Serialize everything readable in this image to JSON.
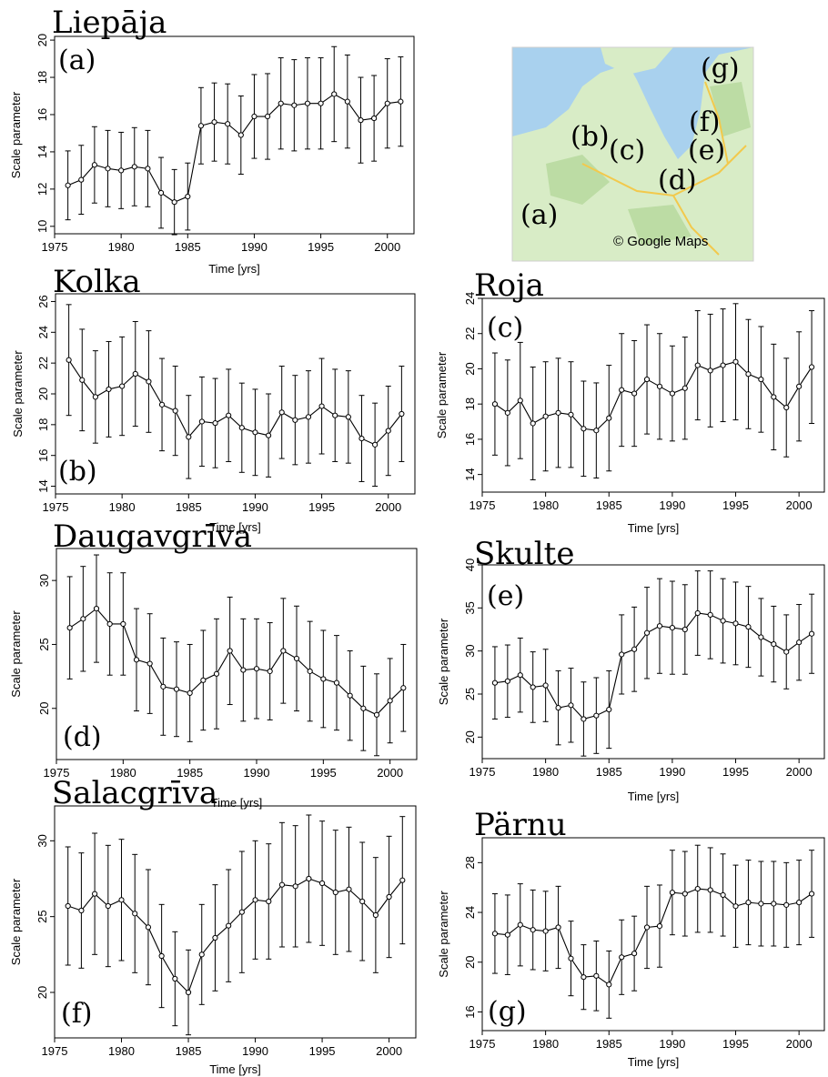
{
  "map": {
    "labels": [
      "(a)",
      "(b)",
      "(c)",
      "(d)",
      "(e)",
      "(f)",
      "(g)"
    ],
    "credit": "© Google Maps",
    "colors": {
      "sea": "#a9d1ee",
      "land": "#d8ecc6",
      "land_dark": "#bcdca4",
      "road": "#f2c94c"
    }
  },
  "chart_data": [
    {
      "type": "line",
      "title": "Liepāja",
      "panel_label": "(a)",
      "xlabel": "Time [yrs]",
      "ylabel": "Scale parameter",
      "xlim": [
        1975,
        2002
      ],
      "ylim": [
        9.6,
        20.2
      ],
      "xticks": [
        1975,
        1980,
        1985,
        1990,
        1995,
        2000
      ],
      "yticks": [
        10,
        12,
        14,
        16,
        18,
        20
      ],
      "x": [
        1976,
        1977,
        1978,
        1979,
        1980,
        1981,
        1982,
        1983,
        1984,
        1985,
        1986,
        1987,
        1988,
        1989,
        1990,
        1991,
        1992,
        1993,
        1994,
        1995,
        1996,
        1997,
        1998,
        1999,
        2000,
        2001
      ],
      "y": [
        12.2,
        12.5,
        13.3,
        13.1,
        13.0,
        13.2,
        13.1,
        11.8,
        11.3,
        11.6,
        15.4,
        15.6,
        15.5,
        14.9,
        15.9,
        15.9,
        16.6,
        16.5,
        16.6,
        16.6,
        17.1,
        16.7,
        15.7,
        15.8,
        16.6,
        16.7
      ],
      "err": [
        1.85,
        1.85,
        2.05,
        2.05,
        2.05,
        2.1,
        2.05,
        1.9,
        1.75,
        1.8,
        2.05,
        2.1,
        2.15,
        2.1,
        2.25,
        2.3,
        2.45,
        2.45,
        2.45,
        2.45,
        2.55,
        2.5,
        2.3,
        2.3,
        2.4,
        2.4
      ]
    },
    {
      "type": "line",
      "title": "Kolka",
      "panel_label": "(b)",
      "xlabel": "Time [yrs]",
      "ylabel": "Scale parameter",
      "xlim": [
        1975,
        2002
      ],
      "ylim": [
        13.5,
        26.5
      ],
      "xticks": [
        1975,
        1980,
        1985,
        1990,
        1995,
        2000
      ],
      "yticks": [
        14,
        16,
        18,
        20,
        22,
        24,
        26
      ],
      "x": [
        1976,
        1977,
        1978,
        1979,
        1980,
        1981,
        1982,
        1983,
        1984,
        1985,
        1986,
        1987,
        1988,
        1989,
        1990,
        1991,
        1992,
        1993,
        1994,
        1995,
        1996,
        1997,
        1998,
        1999,
        2000,
        2001
      ],
      "y": [
        22.2,
        20.9,
        19.8,
        20.3,
        20.5,
        21.3,
        20.8,
        19.3,
        18.9,
        17.2,
        18.2,
        18.1,
        18.6,
        17.8,
        17.5,
        17.3,
        18.8,
        18.3,
        18.5,
        19.2,
        18.6,
        18.5,
        17.1,
        16.7,
        17.6,
        18.7
      ],
      "err": [
        3.6,
        3.3,
        3.0,
        3.1,
        3.2,
        3.4,
        3.3,
        3.0,
        2.9,
        2.7,
        2.9,
        2.9,
        3.0,
        2.9,
        2.8,
        2.7,
        3.0,
        2.9,
        3.0,
        3.1,
        3.0,
        3.0,
        2.8,
        2.7,
        2.9,
        3.1
      ]
    },
    {
      "type": "line",
      "title": "Roja",
      "panel_label": "(c)",
      "xlabel": "Time [yrs]",
      "ylabel": "Scale parameter",
      "xlim": [
        1975,
        2002
      ],
      "ylim": [
        13,
        24
      ],
      "xticks": [
        1975,
        1980,
        1985,
        1990,
        1995,
        2000
      ],
      "yticks": [
        14,
        16,
        18,
        20,
        22,
        24
      ],
      "x": [
        1976,
        1977,
        1978,
        1979,
        1980,
        1981,
        1982,
        1983,
        1984,
        1985,
        1986,
        1987,
        1988,
        1989,
        1990,
        1991,
        1992,
        1993,
        1994,
        1995,
        1996,
        1997,
        1998,
        1999,
        2000,
        2001
      ],
      "y": [
        18.0,
        17.5,
        18.2,
        16.9,
        17.3,
        17.5,
        17.4,
        16.6,
        16.5,
        17.2,
        18.8,
        18.6,
        19.4,
        19.0,
        18.6,
        18.9,
        20.2,
        19.9,
        20.2,
        20.4,
        19.7,
        19.4,
        18.4,
        17.8,
        19.0,
        20.1
      ],
      "err": [
        2.9,
        3.0,
        3.3,
        3.2,
        3.1,
        3.1,
        3.0,
        2.7,
        2.7,
        3.0,
        3.2,
        3.0,
        3.1,
        3.0,
        2.7,
        2.9,
        3.1,
        3.2,
        3.2,
        3.3,
        3.1,
        3.0,
        3.0,
        2.8,
        3.1,
        3.2
      ]
    },
    {
      "type": "line",
      "title": "Daugavgrīva",
      "panel_label": "(d)",
      "xlabel": "Time [yrs]",
      "ylabel": "Scale parameter",
      "xlim": [
        1975,
        2002
      ],
      "ylim": [
        16,
        32.5
      ],
      "xticks": [
        1975,
        1980,
        1985,
        1990,
        1995,
        2000
      ],
      "yticks": [
        20,
        25,
        30
      ],
      "x": [
        1976,
        1977,
        1978,
        1979,
        1980,
        1981,
        1982,
        1983,
        1984,
        1985,
        1986,
        1987,
        1988,
        1989,
        1990,
        1991,
        1992,
        1993,
        1994,
        1995,
        1996,
        1997,
        1998,
        1999,
        2000,
        2001
      ],
      "y": [
        26.3,
        27.0,
        27.8,
        26.6,
        26.6,
        23.8,
        23.5,
        21.7,
        21.5,
        21.2,
        22.2,
        22.7,
        24.5,
        23.0,
        23.1,
        22.9,
        24.5,
        23.9,
        22.9,
        22.3,
        22.0,
        21.0,
        20.0,
        19.5,
        20.6,
        21.6
      ],
      "err": [
        4.0,
        4.1,
        4.2,
        4.0,
        4.0,
        4.0,
        3.9,
        3.8,
        3.7,
        3.8,
        3.9,
        4.3,
        4.2,
        4.0,
        3.9,
        3.8,
        4.1,
        4.1,
        3.9,
        3.8,
        3.7,
        3.5,
        3.3,
        3.2,
        3.3,
        3.4
      ]
    },
    {
      "type": "line",
      "title": "Skulte",
      "panel_label": "(e)",
      "xlabel": "Time [yrs]",
      "ylabel": "Scale parameter",
      "xlim": [
        1975,
        2002
      ],
      "ylim": [
        17.5,
        40
      ],
      "xticks": [
        1975,
        1980,
        1985,
        1990,
        1995,
        2000
      ],
      "yticks": [
        20,
        25,
        30,
        35,
        40
      ],
      "x": [
        1976,
        1977,
        1978,
        1979,
        1980,
        1981,
        1982,
        1983,
        1984,
        1985,
        1986,
        1987,
        1988,
        1989,
        1990,
        1991,
        1992,
        1993,
        1994,
        1995,
        1996,
        1997,
        1998,
        1999,
        2000,
        2001
      ],
      "y": [
        26.3,
        26.5,
        27.2,
        25.8,
        26.0,
        23.4,
        23.7,
        22.1,
        22.5,
        23.2,
        29.6,
        30.2,
        32.1,
        32.9,
        32.7,
        32.5,
        34.4,
        34.2,
        33.5,
        33.2,
        32.8,
        31.6,
        30.8,
        29.9,
        31.0,
        32.0
      ],
      "err": [
        4.2,
        4.2,
        4.3,
        4.1,
        4.2,
        4.3,
        4.3,
        4.3,
        4.4,
        4.5,
        4.6,
        4.9,
        5.3,
        5.5,
        5.4,
        5.2,
        4.9,
        5.1,
        4.9,
        4.8,
        4.7,
        4.5,
        4.4,
        4.3,
        4.4,
        4.6
      ]
    },
    {
      "type": "line",
      "title": "Salacgrīva",
      "panel_label": "(f)",
      "xlabel": "Time [yrs]",
      "ylabel": "Scale parameter",
      "xlim": [
        1975,
        2002
      ],
      "ylim": [
        17,
        32.3
      ],
      "xticks": [
        1975,
        1980,
        1985,
        1990,
        1995,
        2000
      ],
      "yticks": [
        20,
        25,
        30
      ],
      "x": [
        1976,
        1977,
        1978,
        1979,
        1980,
        1981,
        1982,
        1983,
        1984,
        1985,
        1986,
        1987,
        1988,
        1989,
        1990,
        1991,
        1992,
        1993,
        1994,
        1995,
        1996,
        1997,
        1998,
        1999,
        2000,
        2001
      ],
      "y": [
        25.7,
        25.4,
        26.5,
        25.7,
        26.1,
        25.2,
        24.3,
        22.4,
        20.9,
        20.0,
        22.5,
        23.6,
        24.4,
        25.3,
        26.1,
        26.0,
        27.1,
        27.0,
        27.5,
        27.2,
        26.6,
        26.8,
        26.0,
        25.1,
        26.3,
        27.4
      ],
      "err": [
        3.9,
        3.8,
        4.0,
        4.0,
        4.0,
        3.9,
        3.8,
        3.4,
        3.1,
        2.8,
        3.3,
        3.5,
        3.7,
        4.0,
        3.9,
        3.8,
        4.1,
        4.0,
        4.2,
        4.1,
        4.1,
        4.1,
        3.9,
        3.8,
        4.0,
        4.2
      ]
    },
    {
      "type": "line",
      "title": "Pärnu",
      "panel_label": "(g)",
      "xlabel": "Time [yrs]",
      "ylabel": "Scale parameter",
      "xlim": [
        1975,
        2002
      ],
      "ylim": [
        14.5,
        30
      ],
      "xticks": [
        1975,
        1980,
        1985,
        1990,
        1995,
        2000
      ],
      "yticks": [
        16,
        20,
        24,
        28
      ],
      "x": [
        1976,
        1977,
        1978,
        1979,
        1980,
        1981,
        1982,
        1983,
        1984,
        1985,
        1986,
        1987,
        1988,
        1989,
        1990,
        1991,
        1992,
        1993,
        1994,
        1995,
        1996,
        1997,
        1998,
        1999,
        2000,
        2001
      ],
      "y": [
        22.3,
        22.2,
        23.0,
        22.6,
        22.5,
        22.8,
        20.3,
        18.8,
        18.9,
        18.2,
        20.4,
        20.7,
        22.8,
        22.9,
        25.6,
        25.5,
        25.9,
        25.8,
        25.4,
        24.5,
        24.8,
        24.7,
        24.7,
        24.6,
        24.8,
        25.5
      ],
      "err": [
        3.2,
        3.2,
        3.3,
        3.2,
        3.2,
        3.3,
        3.0,
        2.6,
        2.8,
        2.7,
        3.0,
        3.0,
        3.3,
        3.3,
        3.4,
        3.4,
        3.5,
        3.4,
        3.3,
        3.3,
        3.4,
        3.4,
        3.4,
        3.4,
        3.4,
        3.5
      ]
    }
  ]
}
